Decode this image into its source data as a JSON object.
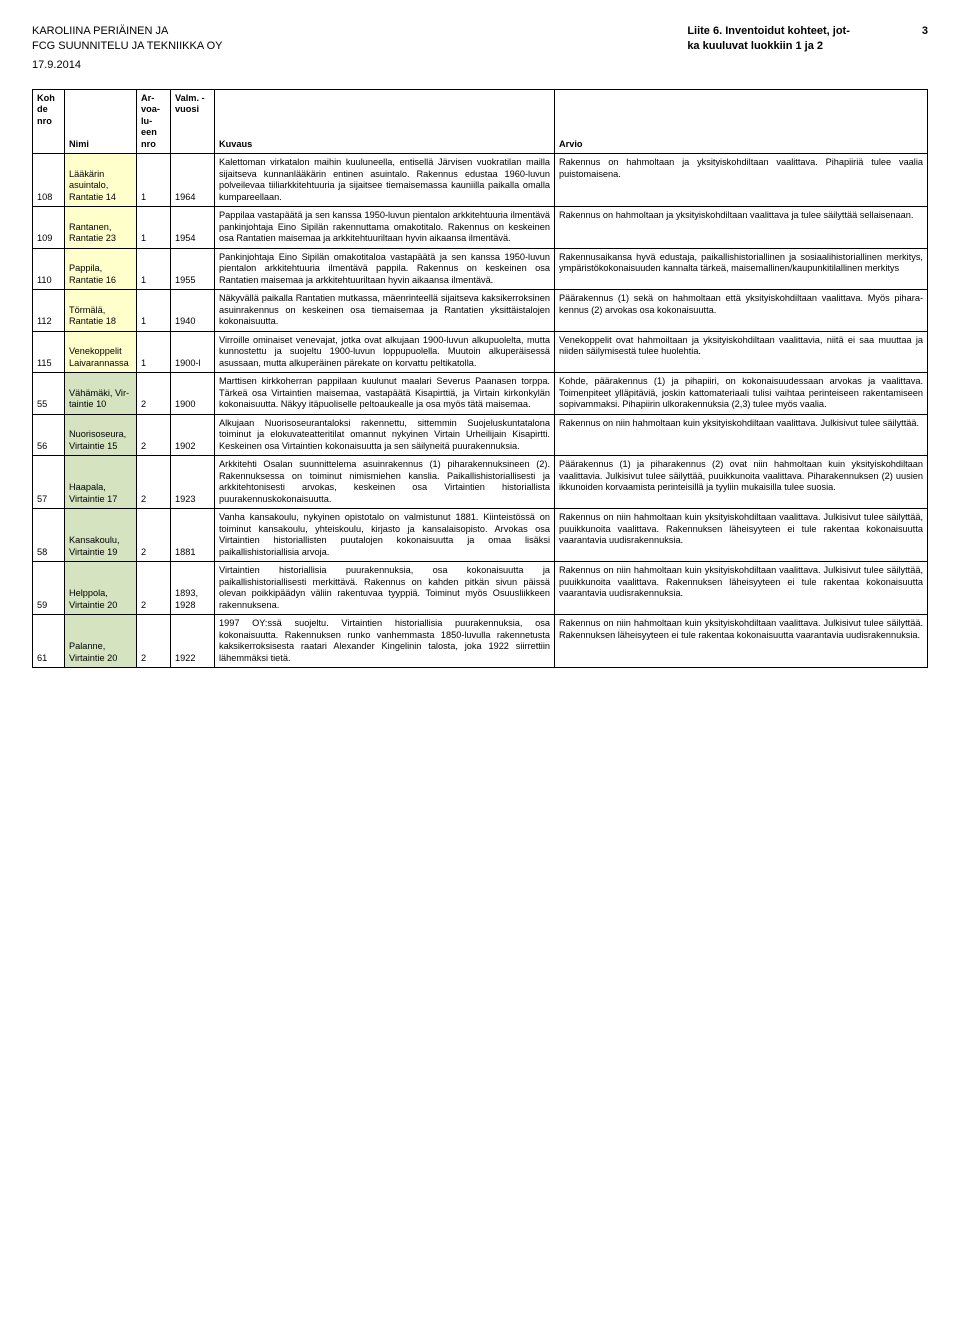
{
  "header": {
    "line1": "KAROLIINA PERIÄINEN JA",
    "line2": "FCG SUUNNITELU JA TEKNIIKKA OY",
    "date": "17.9.2014",
    "right_title_line1": "Liite 6. Inventoidut kohteet, jot-",
    "right_title_line2": "ka kuuluvat luokkiin 1 ja 2",
    "page_number": "3"
  },
  "columns": {
    "nro": "Koh\nde\nnro",
    "nimi": "Nimi",
    "arvo": "Ar-\nvoa-\nlu-\neen\nnro",
    "vuosi": "Valm.\n-\nvuosi",
    "kuvaus": "Kuvaus",
    "arvio": "Arvio"
  },
  "rows": [
    {
      "nro": "108",
      "nimi": "Lääkärin asuintalo, Rantatie 14",
      "arvo": "1",
      "vuosi": "1964",
      "kuvaus": "Kalettoman virkatalon maihin kuuluneella, entisellä Järvisen vuokratilan mailla sijaitseva kunnanlääkärin entinen asuintalo. Rakennus edustaa 1960-luvun polveilevaa tiiliarkkiteh­tuuria ja sijaitsee tiemaisemassa kauniilla paikalla omalla kumpareellaan.",
      "arvio": "Rakennus on hahmoltaan ja yksityiskohdiltaan vaalittava. Pihapiiriä tulee vaalia puistomaise­na.",
      "bg_nimi": "#ffffcc"
    },
    {
      "nro": "109",
      "nimi": "Rantanen, Rantatie 23",
      "arvo": "1",
      "vuosi": "1954",
      "kuvaus": "Pappilaa vastapäätä ja sen kanssa 1950-luvun pientalon arkkitehtuuria ilmentävä pankinjohtaja Eino Sipilän rakennuttama omakotitalo. Rakennus on keskeinen osa Rantatien maisemaa ja arkkitehtuuriltaan hyvin aikaansa ilmentävä.",
      "arvio": "Rakennus on hahmoltaan ja yksityiskohdiltaan vaalittava ja tulee säilyttää sellaisenaan.",
      "bg_nimi": "#ffffcc"
    },
    {
      "nro": "110",
      "nimi": "Pappila, Rantatie 16",
      "arvo": "1",
      "vuosi": "1955",
      "kuvaus": "Pankinjohtaja Eino Sipilän omakotitaloa vas­tapäätä ja sen kanssa 1950-luvun pientalon arkkitehtuuria ilmentävä pappila. Rakennus on keskeinen osa Rantatien maisemaa ja arkkitehtuuriltaan hyvin aikaansa ilmentävä.",
      "arvio": "Rakennusaikansa hyvä edustaja, paikallishis­toriallinen ja sosiaalihistoriallinen merkitys, ympäristökokonaisuuden kannalta tärkeä, maisemallinen/kaupunkitilallinen merkitys",
      "bg_nimi": "#ffffcc"
    },
    {
      "nro": "112",
      "nimi": "Törmälä, Rantatie 18",
      "arvo": "1",
      "vuosi": "1940",
      "kuvaus": "Näkyvällä paikalla Rantatien mutkassa, mä­enrinteellä sijaitseva kaksikerroksinen asuin­rakennus on keskeinen osa tiemaisemaa ja Rantatien yksittäistalojen kokonaisuutta.",
      "arvio": "Päärakennus (1) sekä on hahmoltaan että yksityiskohdiltaan vaalittava. Myös pihara­kennus (2) arvokas osa kokonaisuutta.",
      "bg_nimi": "#ffffcc"
    },
    {
      "nro": "115",
      "nimi": "Venekop­pelit Lai­varannas­sa",
      "arvo": "1",
      "vuosi": "1900-l",
      "kuvaus": "Virroille ominaiset venevajat, jotka ovat al­kujaan 1900-luvun alkupuolelta, mutta kun­nostettu ja suojeltu 1900-luvun loppupuolel­la. Muutoin alkuperäisessä asussaan, mutta alkuperäinen pärekate on korvattu peltikatol­la.",
      "arvio": "Venekoppelit ovat hahmoiltaan ja yksityis­kohdiltaan vaalittavia, niitä ei saa muuttaa ja niiden säilymisestä tulee huolehtia.",
      "bg_nimi": "#ffffcc"
    },
    {
      "nro": "55",
      "nimi": "Vähämä­ki, Vir­taintie 10",
      "arvo": "2",
      "vuosi": "1900",
      "kuvaus": "Marttisen kirkkoherran pappilaan kuulunut maalari Severus Paanasen torppa. Tärkeä osa Virtaintien maisemaa, vastapäätä Kisa­pirttiä, ja Virtain kirkonkylän kokonaisuutta. Näkyy itäpuoliselle peltoaukealle ja osa myös tätä maisemaa.",
      "arvio": "Kohde, päärakennus (1) ja pihapiiri, on koko­naisuudessaan arvokas ja vaalittava. Toimen­piteet ylläpitäviä, joskin kattomateriaali tulisi vaihtaa perinteiseen rakentamiseen sopi­vammaksi. Pihapiirin ulkorakennuksia (2,3) tulee myös vaalia.",
      "bg_nimi": "#d5e3c0"
    },
    {
      "nro": "56",
      "nimi": "Nuoriso­seura, Virtaintie 15",
      "arvo": "2",
      "vuosi": "1902",
      "kuvaus": "Alkujaan Nuorisoseurantaloksi rakennettu, sittemmin Suojeluskuntatalona toiminut ja elokuvateatteritilat omannut nykyinen Virtain Urheilijain Kisapirtti. Keskeinen osa Virtain­tien kokonaisuutta ja sen säilyneitä puura­kennuksia.",
      "arvio": "Rakennus on niin hahmoltaan kuin yksityis­kohdiltaan vaalittava. Julkisivut tulee säilyt­tää.",
      "bg_nimi": "#d5e3c0"
    },
    {
      "nro": "57",
      "nimi": "Haapala, Virtaintie 17",
      "arvo": "2",
      "vuosi": "1923",
      "kuvaus": "Arkkitehti Osalan suunnittelema asuinraken­nus (1) piharakennuksineen (2). Rakennuk­sessa on toiminut nimismiehen kanslia. Pai­kallishistoriallisesti ja arkkitehtonisesti arvo­kas, keskeinen osa Virtaintien historiallista puurakennuskokonaisuutta.",
      "arvio": "Päärakennus (1) ja piharakennus (2) ovat niin hahmoltaan kuin yksityiskohdiltaan vaalitta­via. Julkisivut tulee säilyttää, puuikkunoita vaalittava. Piharakennuksen (2) uusien ikku­noiden korvaamista perinteisillä ja tyyliin mu­kaisilla tulee suosia.",
      "bg_nimi": "#d5e3c0"
    },
    {
      "nro": "58",
      "nimi": "Kansa­koulu, Virtaintie 19",
      "arvo": "2",
      "vuosi": "1881",
      "kuvaus": "Vanha kansakoulu, nykyinen opistotalo on valmistunut 1881. Kiinteistössä on toiminut kansakoulu, yhteiskoulu, kirjasto ja kansa­laisopisto. Arvokas osa Virtaintien historiallis­ten puutalojen kokonaisuutta ja omaa lisäksi paikallishistoriallisia arvoja.",
      "arvio": "Rakennus on niin hahmoltaan kuin yksityis­kohdiltaan vaalittava. Julkisivut tulee säilyt­tää, puuikkunoita vaalittava. Rakennuksen läheisyyteen ei tule rakentaa kokonaisuutta vaarantavia uudisrakennuksia.",
      "bg_nimi": "#d5e3c0"
    },
    {
      "nro": "59",
      "nimi": "Helppola, Virtaintie 20",
      "arvo": "2",
      "vuosi": "1893, 1928",
      "kuvaus": "Virtaintien historiallisia puurakennuksia, osa kokonaisuutta ja paikallishistoriallisesti mer­kittävä. Rakennus on kahden pitkän sivun päissä olevan poikkipäädyn väliin rakentuvaa tyyppiä. Toiminut myös Osuusliikkeen raken­nuksena.",
      "arvio": "Rakennus on niin hahmoltaan kuin yksityis­kohdiltaan vaalittava. Julkisivut tulee säilyt­tää, puuikkunoita vaalittava. Rakennuksen läheisyyteen ei tule rakentaa kokonaisuutta vaarantavia uudisrakennuksia.",
      "bg_nimi": "#d5e3c0"
    },
    {
      "nro": "61",
      "nimi": "Palanne, Virtaintie 20",
      "arvo": "2",
      "vuosi": "1922",
      "kuvaus": "1997 OY:ssä suojeltu. Virtaintien historiallisia puurakennuksia, osa kokonaisuutta. Raken­nuksen runko vanhemmasta 1850-luvulla rakennetusta kaksikerroksisesta raatari Ale­xander Kingelinin talosta, joka 1922 siirrettiin lähemmäksi tietä.",
      "arvio": "Rakennus on niin hahmoltaan kuin yksityis­kohdiltaan vaalittava. Julkisivut tulee säilyt­tää. Rakennuksen läheisyyteen ei tule raken­taa kokonaisuutta vaarantavia uudisraken­nuksia.",
      "bg_nimi": "#d5e3c0"
    }
  ]
}
